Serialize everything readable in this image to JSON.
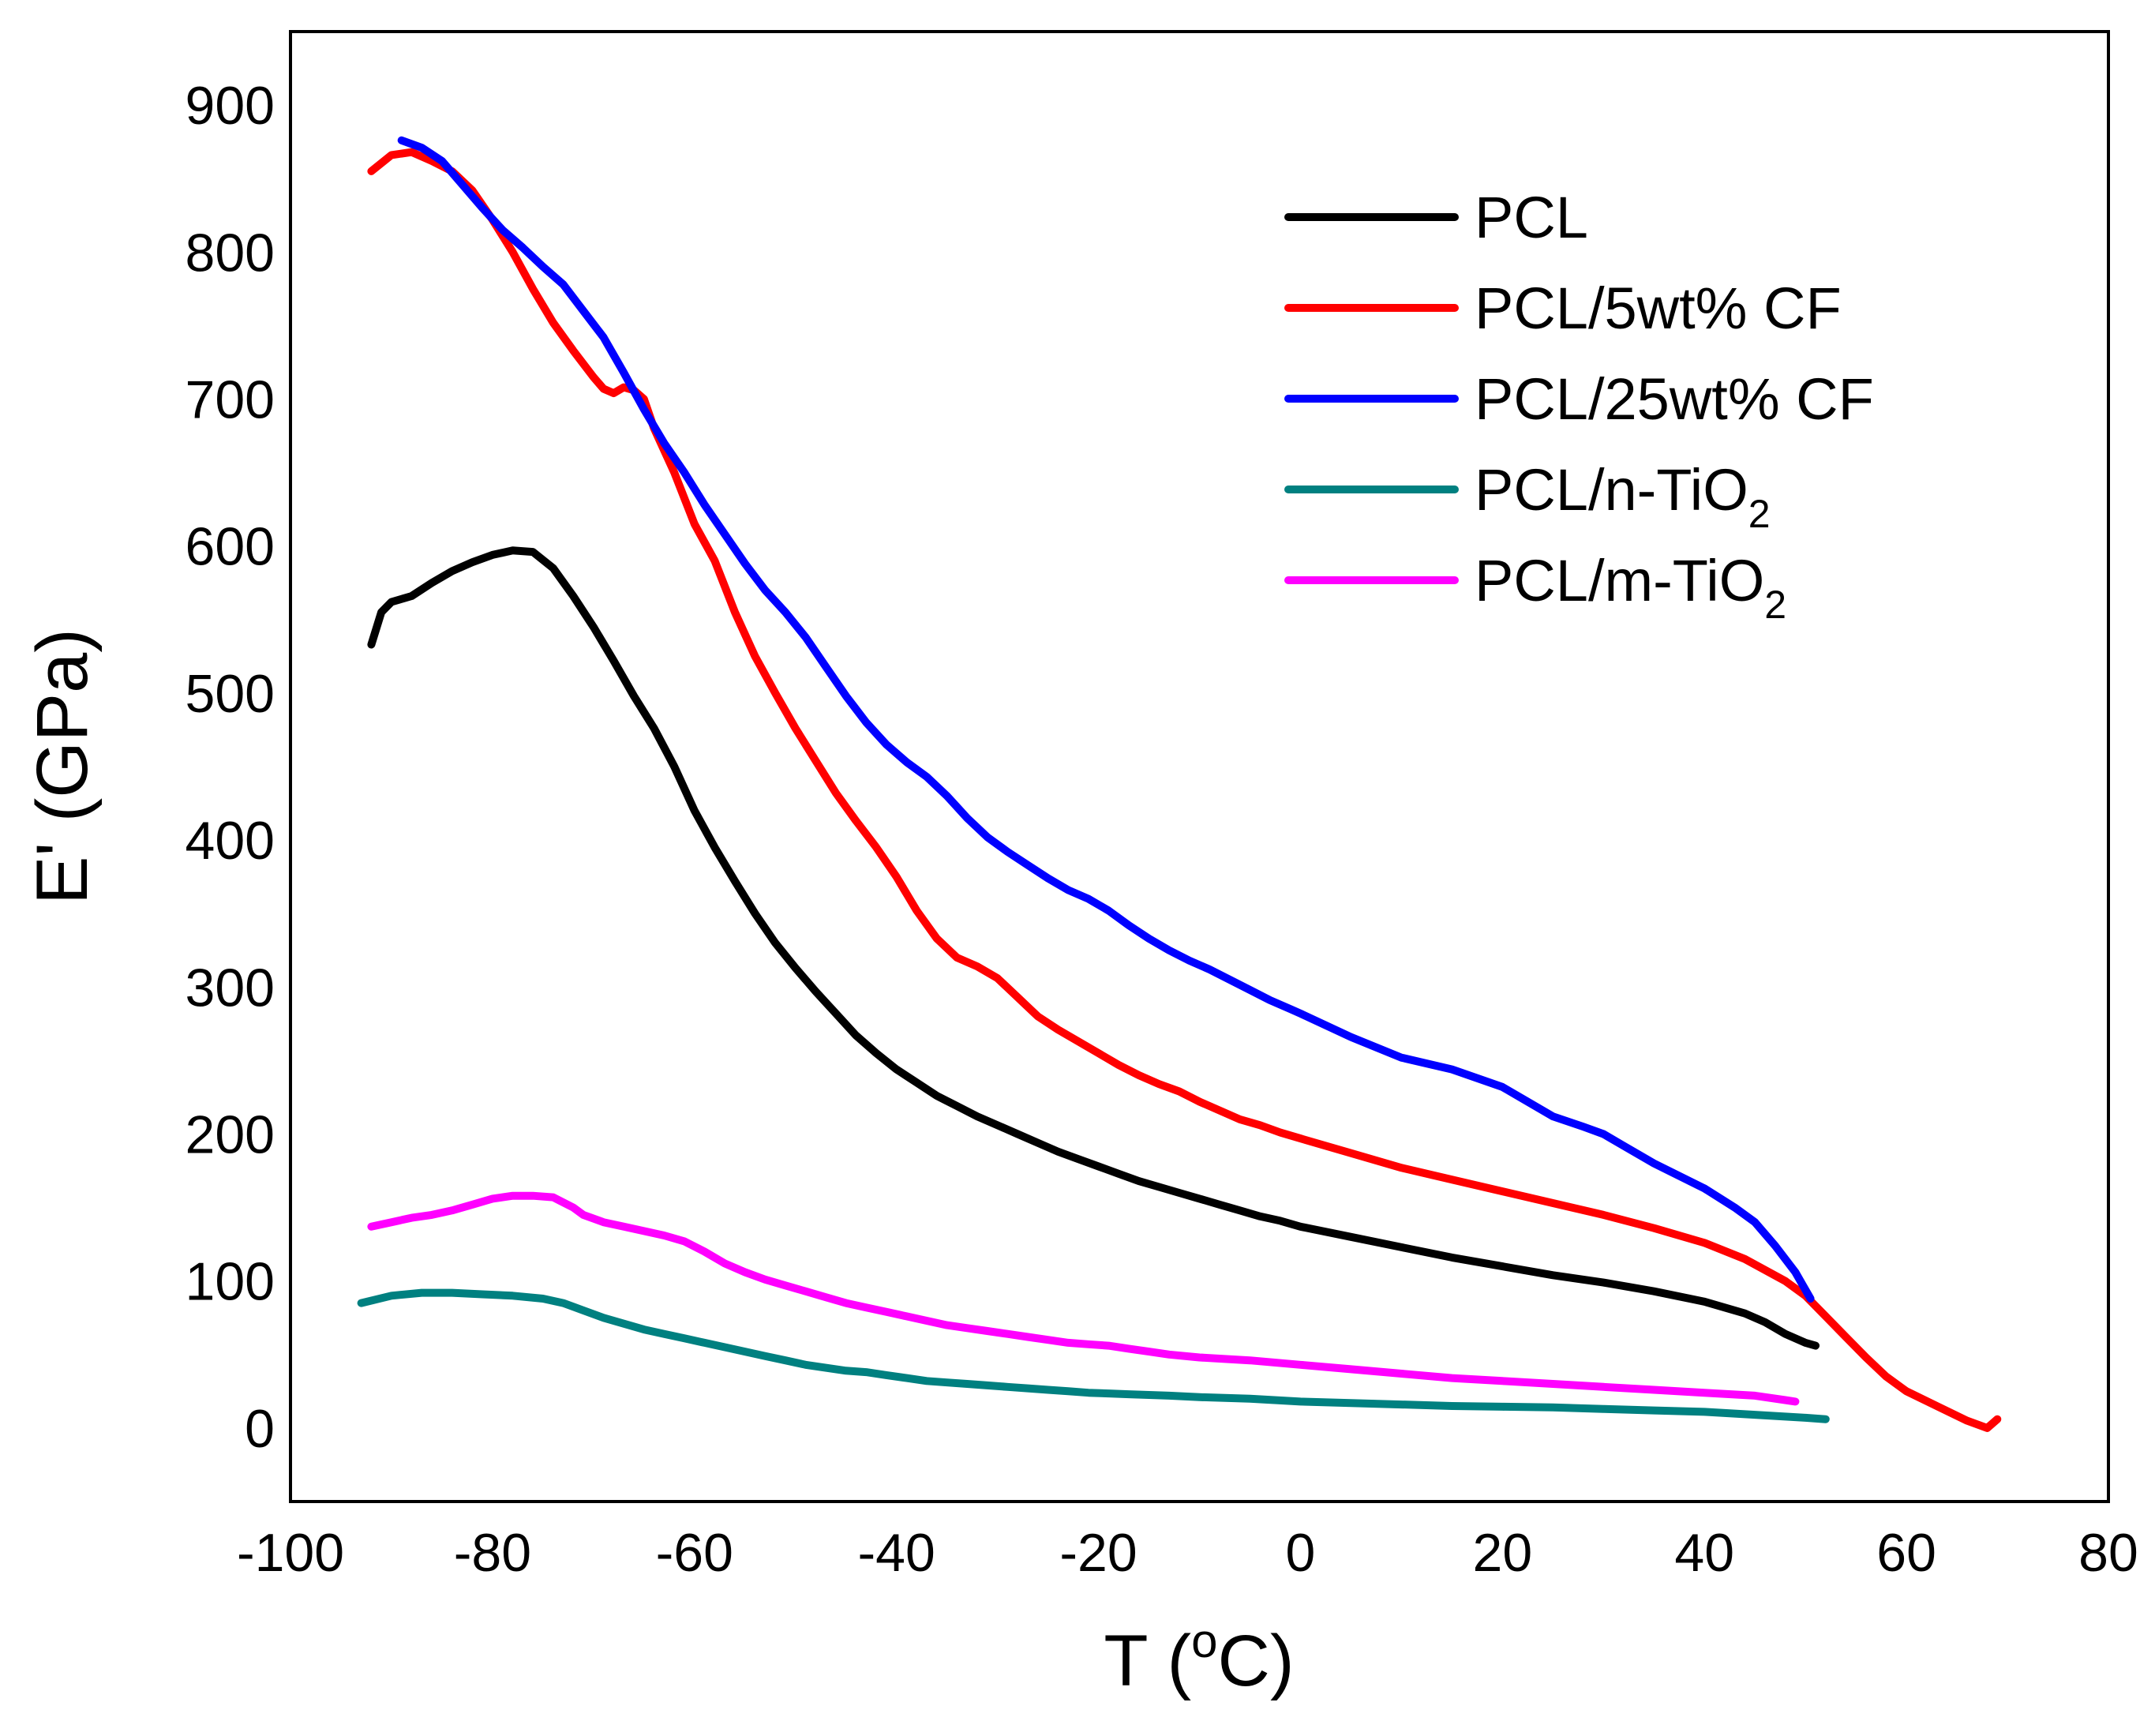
{
  "chart_data": {
    "type": "line",
    "title": "",
    "xlabel": "T (",
    "xlabel_sup": "o",
    "xlabel_end": "C)",
    "ylabel": "E' (GPa)",
    "xlim": [
      -100,
      80
    ],
    "ylim": [
      -50,
      950
    ],
    "xticks": [
      "-100",
      "-80",
      "-60",
      "-40",
      "-20",
      "0",
      "20",
      "40",
      "60",
      "80"
    ],
    "yticks": [
      "0",
      "100",
      "200",
      "300",
      "400",
      "500",
      "600",
      "700",
      "800",
      "900"
    ],
    "xtick_values": [
      -100,
      -80,
      -60,
      -40,
      -20,
      0,
      20,
      40,
      60,
      80
    ],
    "ytick_values": [
      0,
      100,
      200,
      300,
      400,
      500,
      600,
      700,
      800,
      900
    ],
    "legend_position": "top-right",
    "series": [
      {
        "name": "PCL",
        "name_main": "PCL",
        "name_sub": "",
        "color": "#000000",
        "points": [
          [
            -92,
            533
          ],
          [
            -91,
            555
          ],
          [
            -90,
            562
          ],
          [
            -88,
            566
          ],
          [
            -86,
            575
          ],
          [
            -84,
            583
          ],
          [
            -82,
            589
          ],
          [
            -80,
            594
          ],
          [
            -78,
            597
          ],
          [
            -76,
            596
          ],
          [
            -74,
            585
          ],
          [
            -72,
            566
          ],
          [
            -70,
            545
          ],
          [
            -68,
            522
          ],
          [
            -66,
            498
          ],
          [
            -64,
            476
          ],
          [
            -62,
            450
          ],
          [
            -60,
            420
          ],
          [
            -58,
            395
          ],
          [
            -56,
            372
          ],
          [
            -54,
            350
          ],
          [
            -52,
            330
          ],
          [
            -50,
            313
          ],
          [
            -48,
            297
          ],
          [
            -46,
            282
          ],
          [
            -44,
            267
          ],
          [
            -42,
            255
          ],
          [
            -40,
            244
          ],
          [
            -38,
            235
          ],
          [
            -36,
            226
          ],
          [
            -34,
            219
          ],
          [
            -32,
            212
          ],
          [
            -30,
            206
          ],
          [
            -28,
            200
          ],
          [
            -26,
            194
          ],
          [
            -24,
            188
          ],
          [
            -22,
            183
          ],
          [
            -20,
            178
          ],
          [
            -18,
            173
          ],
          [
            -16,
            168
          ],
          [
            -14,
            164
          ],
          [
            -12,
            160
          ],
          [
            -10,
            156
          ],
          [
            -8,
            152
          ],
          [
            -6,
            148
          ],
          [
            -4,
            144
          ],
          [
            -2,
            141
          ],
          [
            0,
            137
          ],
          [
            5,
            130
          ],
          [
            10,
            123
          ],
          [
            15,
            116
          ],
          [
            20,
            110
          ],
          [
            25,
            104
          ],
          [
            30,
            99
          ],
          [
            35,
            93
          ],
          [
            40,
            86
          ],
          [
            44,
            78
          ],
          [
            46,
            72
          ],
          [
            48,
            64
          ],
          [
            50,
            58
          ],
          [
            51,
            56
          ]
        ]
      },
      {
        "name": "PCL/5wt% CF",
        "name_main": "PCL/5wt% CF",
        "name_sub": "",
        "color": "#ff0000",
        "points": [
          [
            -92,
            855
          ],
          [
            -90,
            866
          ],
          [
            -88,
            868
          ],
          [
            -86,
            862
          ],
          [
            -84,
            855
          ],
          [
            -82,
            842
          ],
          [
            -80,
            822
          ],
          [
            -78,
            800
          ],
          [
            -76,
            775
          ],
          [
            -74,
            752
          ],
          [
            -72,
            733
          ],
          [
            -70,
            715
          ],
          [
            -69,
            707
          ],
          [
            -68,
            704
          ],
          [
            -67,
            708
          ],
          [
            -66,
            706
          ],
          [
            -65,
            700
          ],
          [
            -64,
            680
          ],
          [
            -62,
            650
          ],
          [
            -60,
            615
          ],
          [
            -58,
            590
          ],
          [
            -56,
            555
          ],
          [
            -54,
            525
          ],
          [
            -52,
            500
          ],
          [
            -50,
            476
          ],
          [
            -48,
            454
          ],
          [
            -46,
            432
          ],
          [
            -44,
            413
          ],
          [
            -42,
            395
          ],
          [
            -40,
            375
          ],
          [
            -38,
            352
          ],
          [
            -36,
            333
          ],
          [
            -34,
            320
          ],
          [
            -32,
            314
          ],
          [
            -30,
            306
          ],
          [
            -28,
            293
          ],
          [
            -26,
            280
          ],
          [
            -24,
            271
          ],
          [
            -22,
            263
          ],
          [
            -20,
            255
          ],
          [
            -18,
            247
          ],
          [
            -16,
            240
          ],
          [
            -14,
            234
          ],
          [
            -12,
            229
          ],
          [
            -10,
            222
          ],
          [
            -8,
            216
          ],
          [
            -6,
            210
          ],
          [
            -4,
            206
          ],
          [
            -2,
            201
          ],
          [
            0,
            197
          ],
          [
            5,
            187
          ],
          [
            10,
            177
          ],
          [
            15,
            169
          ],
          [
            20,
            161
          ],
          [
            25,
            153
          ],
          [
            30,
            145
          ],
          [
            35,
            136
          ],
          [
            40,
            126
          ],
          [
            44,
            115
          ],
          [
            48,
            100
          ],
          [
            50,
            90
          ],
          [
            52,
            76
          ],
          [
            54,
            62
          ],
          [
            56,
            48
          ],
          [
            58,
            35
          ],
          [
            60,
            25
          ],
          [
            63,
            15
          ],
          [
            66,
            5
          ],
          [
            68,
            0
          ],
          [
            69,
            6
          ]
        ]
      },
      {
        "name": "PCL/25wt% CF",
        "name_main": "PCL/25wt% CF",
        "name_sub": "",
        "color": "#0000ff",
        "points": [
          [
            -89,
            876
          ],
          [
            -87,
            871
          ],
          [
            -85,
            862
          ],
          [
            -83,
            846
          ],
          [
            -81,
            830
          ],
          [
            -79,
            815
          ],
          [
            -77,
            803
          ],
          [
            -75,
            790
          ],
          [
            -73,
            778
          ],
          [
            -71,
            760
          ],
          [
            -69,
            742
          ],
          [
            -67,
            718
          ],
          [
            -65,
            693
          ],
          [
            -63,
            670
          ],
          [
            -61,
            650
          ],
          [
            -59,
            628
          ],
          [
            -57,
            608
          ],
          [
            -55,
            588
          ],
          [
            -53,
            570
          ],
          [
            -51,
            555
          ],
          [
            -49,
            538
          ],
          [
            -47,
            518
          ],
          [
            -45,
            498
          ],
          [
            -43,
            480
          ],
          [
            -41,
            465
          ],
          [
            -39,
            453
          ],
          [
            -37,
            443
          ],
          [
            -35,
            430
          ],
          [
            -33,
            415
          ],
          [
            -31,
            402
          ],
          [
            -29,
            392
          ],
          [
            -27,
            383
          ],
          [
            -25,
            374
          ],
          [
            -23,
            366
          ],
          [
            -21,
            360
          ],
          [
            -19,
            352
          ],
          [
            -17,
            342
          ],
          [
            -15,
            333
          ],
          [
            -13,
            325
          ],
          [
            -11,
            318
          ],
          [
            -9,
            312
          ],
          [
            -7,
            305
          ],
          [
            -5,
            298
          ],
          [
            -3,
            291
          ],
          [
            -1,
            285
          ],
          [
            0,
            282
          ],
          [
            5,
            266
          ],
          [
            10,
            252
          ],
          [
            15,
            244
          ],
          [
            20,
            232
          ],
          [
            22,
            224
          ],
          [
            25,
            212
          ],
          [
            28,
            205
          ],
          [
            30,
            200
          ],
          [
            32,
            192
          ],
          [
            35,
            180
          ],
          [
            40,
            163
          ],
          [
            43,
            150
          ],
          [
            45,
            140
          ],
          [
            47,
            124
          ],
          [
            49,
            106
          ],
          [
            50,
            94
          ],
          [
            50.5,
            88
          ]
        ]
      },
      {
        "name": "PCL/n-TiO2",
        "name_main": "PCL/n-TiO",
        "name_sub": "2",
        "color": "#008080",
        "points": [
          [
            -93,
            85
          ],
          [
            -90,
            90
          ],
          [
            -87,
            92
          ],
          [
            -84,
            92
          ],
          [
            -81,
            91
          ],
          [
            -78,
            90
          ],
          [
            -75,
            88
          ],
          [
            -73,
            85
          ],
          [
            -71,
            80
          ],
          [
            -69,
            75
          ],
          [
            -67,
            71
          ],
          [
            -65,
            67
          ],
          [
            -63,
            64
          ],
          [
            -61,
            61
          ],
          [
            -59,
            58
          ],
          [
            -57,
            55
          ],
          [
            -55,
            52
          ],
          [
            -53,
            49
          ],
          [
            -51,
            46
          ],
          [
            -49,
            43
          ],
          [
            -47,
            41
          ],
          [
            -45,
            39
          ],
          [
            -43,
            38
          ],
          [
            -41,
            36
          ],
          [
            -39,
            34
          ],
          [
            -37,
            32
          ],
          [
            -35,
            31
          ],
          [
            -33,
            30
          ],
          [
            -31,
            29
          ],
          [
            -29,
            28
          ],
          [
            -27,
            27
          ],
          [
            -25,
            26
          ],
          [
            -23,
            25
          ],
          [
            -21,
            24
          ],
          [
            -19,
            23.5
          ],
          [
            -17,
            23
          ],
          [
            -15,
            22.5
          ],
          [
            -13,
            22
          ],
          [
            -10,
            21
          ],
          [
            -5,
            20
          ],
          [
            0,
            18
          ],
          [
            5,
            17
          ],
          [
            10,
            16
          ],
          [
            15,
            15
          ],
          [
            20,
            14.5
          ],
          [
            25,
            14
          ],
          [
            30,
            13
          ],
          [
            35,
            12
          ],
          [
            40,
            11
          ],
          [
            45,
            9
          ],
          [
            50,
            7
          ],
          [
            52,
            6
          ]
        ]
      },
      {
        "name": "PCL/m-TiO2",
        "name_main": "PCL/m-TiO",
        "name_sub": "2",
        "color": "#ff00ff",
        "points": [
          [
            -92,
            137
          ],
          [
            -90,
            140
          ],
          [
            -88,
            143
          ],
          [
            -86,
            145
          ],
          [
            -84,
            148
          ],
          [
            -82,
            152
          ],
          [
            -80,
            156
          ],
          [
            -78,
            158
          ],
          [
            -76,
            158
          ],
          [
            -74,
            157
          ],
          [
            -72,
            150
          ],
          [
            -71,
            145
          ],
          [
            -69,
            140
          ],
          [
            -67,
            137
          ],
          [
            -65,
            134
          ],
          [
            -63,
            131
          ],
          [
            -61,
            127
          ],
          [
            -59,
            120
          ],
          [
            -57,
            112
          ],
          [
            -55,
            106
          ],
          [
            -53,
            101
          ],
          [
            -51,
            97
          ],
          [
            -49,
            93
          ],
          [
            -47,
            89
          ],
          [
            -45,
            85
          ],
          [
            -43,
            82
          ],
          [
            -41,
            79
          ],
          [
            -39,
            76
          ],
          [
            -37,
            73
          ],
          [
            -35,
            70
          ],
          [
            -33,
            68
          ],
          [
            -31,
            66
          ],
          [
            -29,
            64
          ],
          [
            -27,
            62
          ],
          [
            -25,
            60
          ],
          [
            -23,
            58
          ],
          [
            -21,
            57
          ],
          [
            -19,
            56
          ],
          [
            -17,
            54
          ],
          [
            -15,
            52
          ],
          [
            -13,
            50
          ],
          [
            -10,
            48
          ],
          [
            -5,
            46
          ],
          [
            0,
            43
          ],
          [
            5,
            40
          ],
          [
            10,
            37
          ],
          [
            15,
            34
          ],
          [
            20,
            32
          ],
          [
            25,
            30
          ],
          [
            30,
            28
          ],
          [
            35,
            26
          ],
          [
            40,
            24
          ],
          [
            45,
            22
          ],
          [
            48,
            19
          ],
          [
            49,
            18
          ]
        ]
      }
    ]
  }
}
